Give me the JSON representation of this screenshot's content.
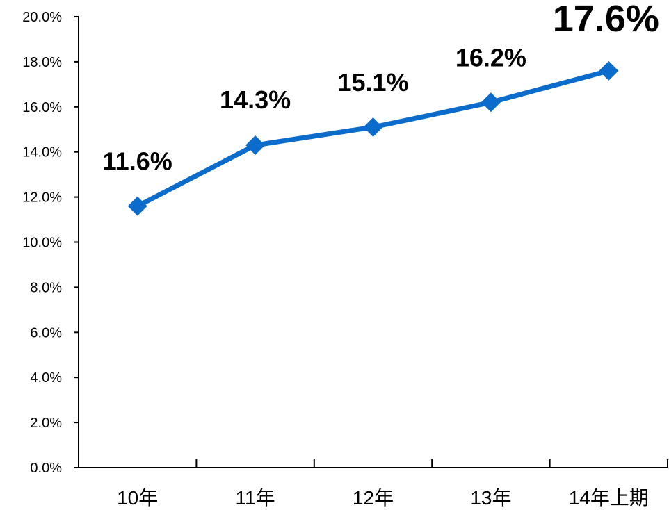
{
  "chart_data": {
    "type": "line",
    "categories": [
      "10年",
      "11年",
      "12年",
      "13年",
      "14年上期"
    ],
    "series": [
      {
        "values": [
          11.6,
          14.3,
          15.1,
          16.2,
          17.6
        ],
        "data_labels": [
          "11.6%",
          "14.3%",
          "15.1%",
          "16.2%",
          "17.6%"
        ]
      }
    ],
    "yticks": [
      "0.0%",
      "2.0%",
      "4.0%",
      "6.0%",
      "8.0%",
      "10.0%",
      "12.0%",
      "14.0%",
      "16.0%",
      "18.0%",
      "20.0%"
    ],
    "ylim": [
      0,
      20
    ],
    "grid": false,
    "marker": "diamond",
    "line_color": "#0B6CCB",
    "title": "",
    "xlabel": "",
    "ylabel": ""
  }
}
